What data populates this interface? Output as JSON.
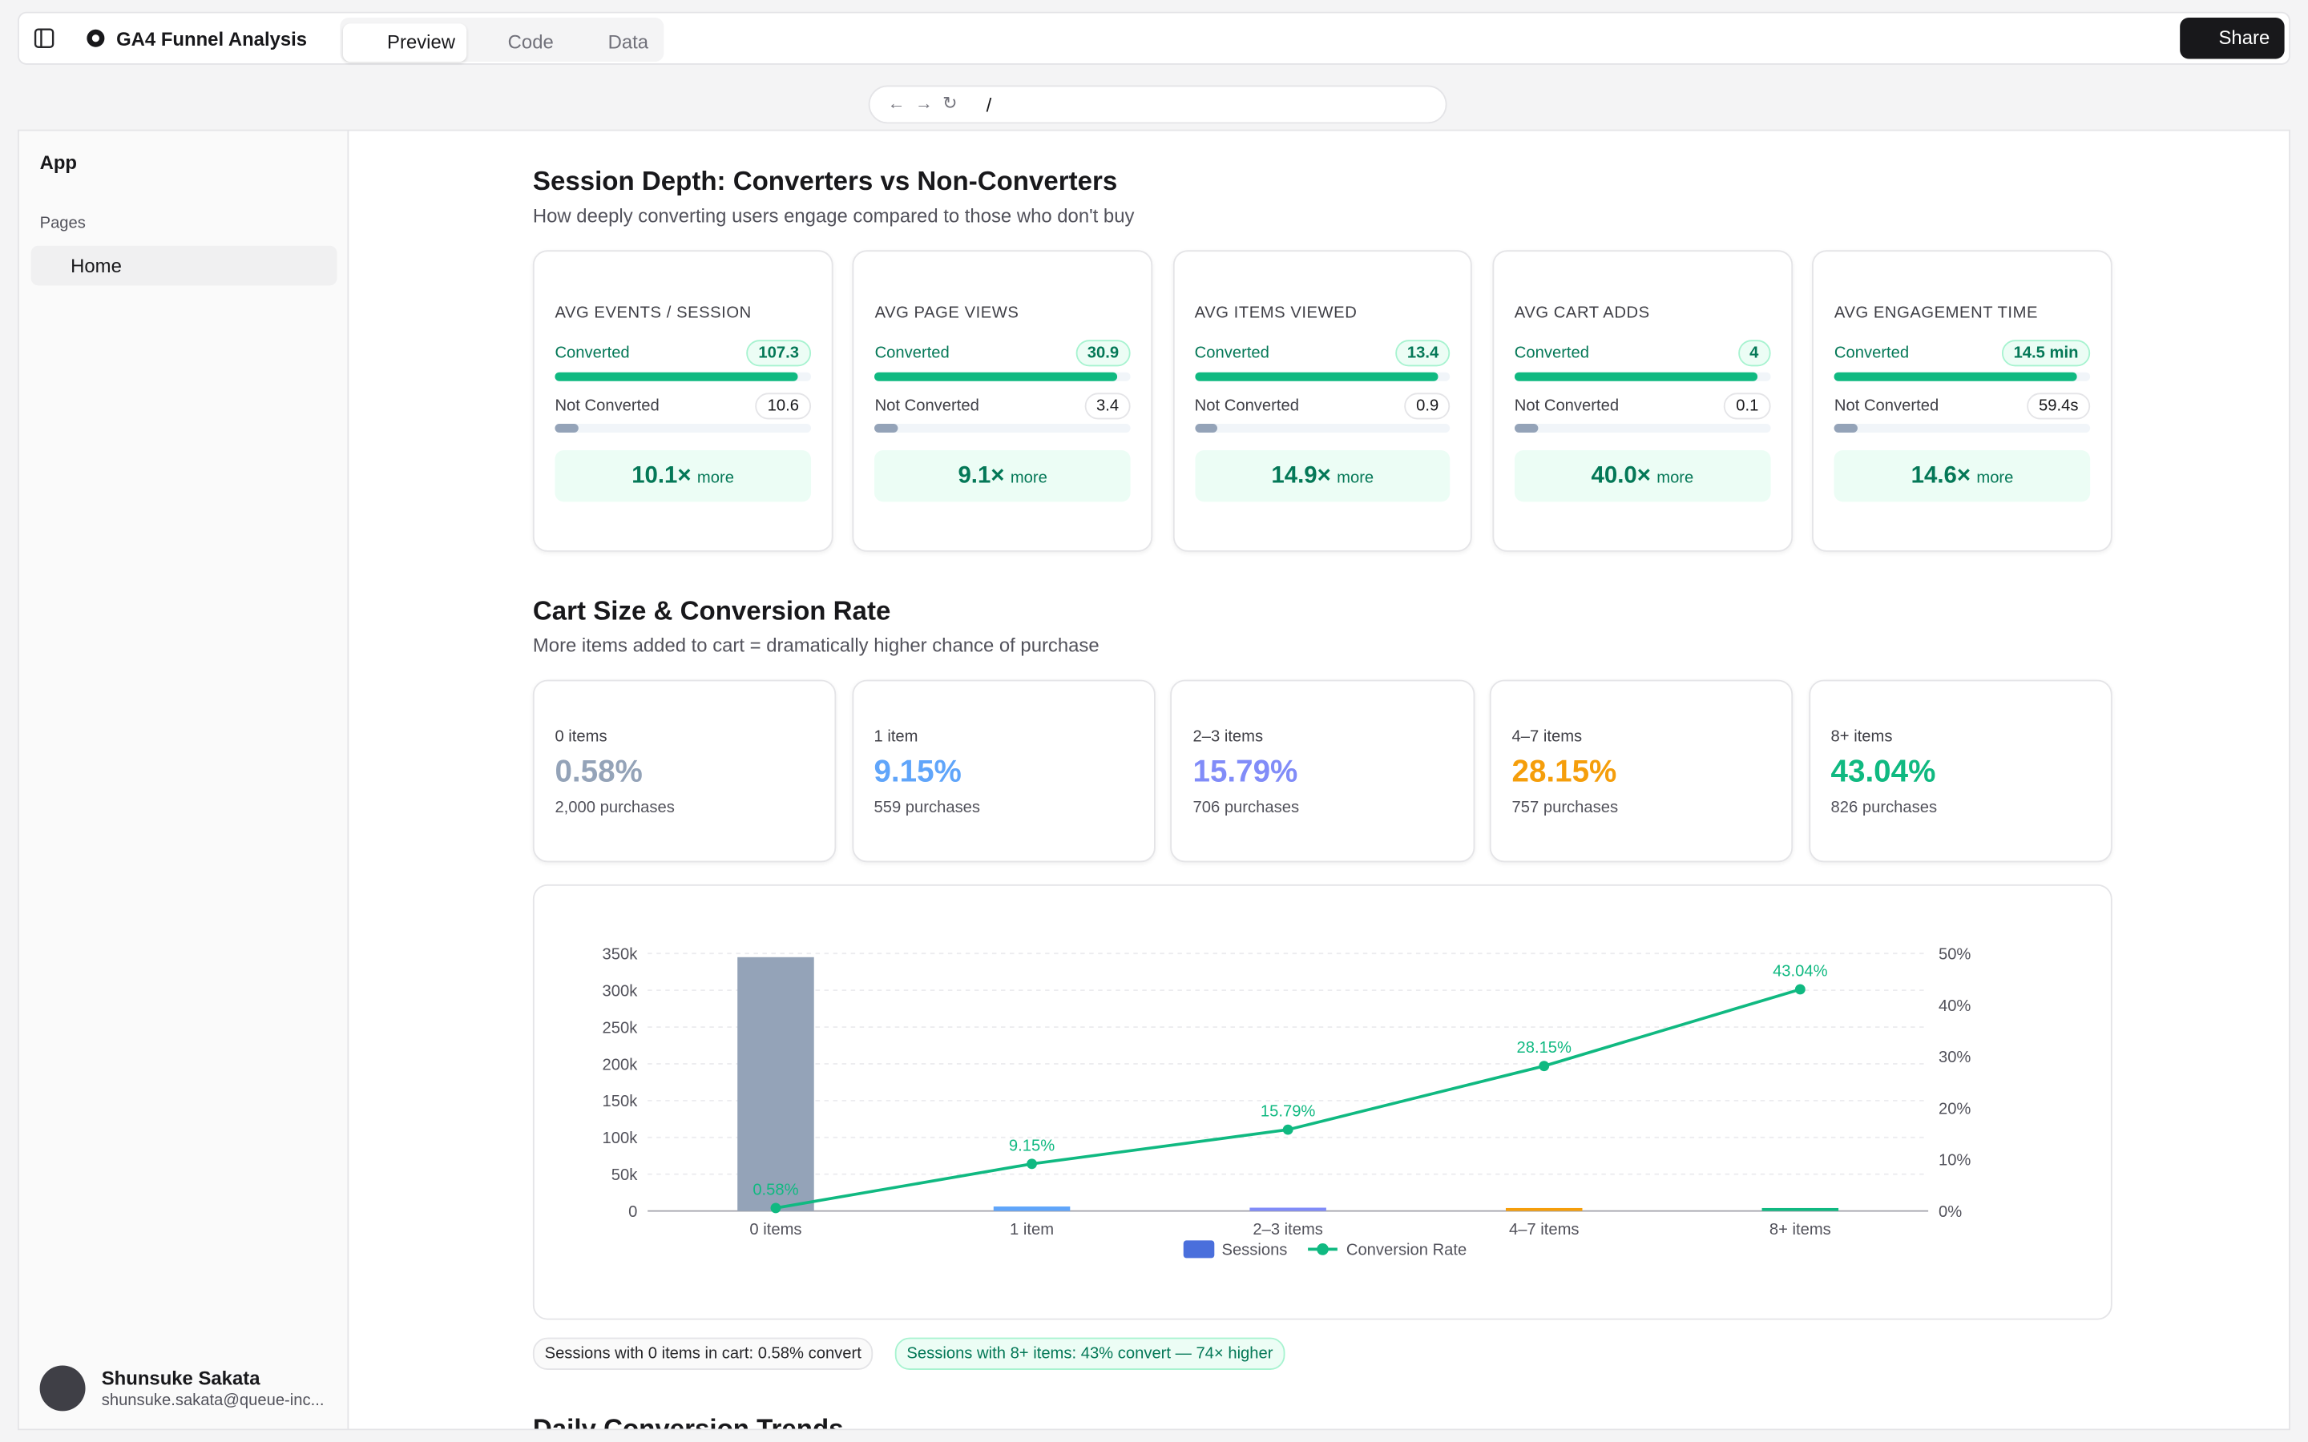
{
  "toolbar": {
    "project": "GA4 Funnel Analysis",
    "tabs": [
      "Preview",
      "Code",
      "Data"
    ],
    "share": "Share",
    "url": "/"
  },
  "sidebar": {
    "app": "App",
    "section": "Pages",
    "items": [
      "Home"
    ],
    "user": {
      "name": "Shunsuke Sakata",
      "email": "shunsuke.sakata@queue-inc..."
    }
  },
  "session_depth": {
    "title": "Session Depth: Converters vs Non-Converters",
    "subtitle": "How deeply converting users engage compared to those who don't buy",
    "cards": [
      {
        "label": "AVG EVENTS / SESSION",
        "converted_label": "Converted",
        "converted": "107.3",
        "not_label": "Not Converted",
        "not_converted": "10.6",
        "multiplier": "10.1×",
        "more": "more"
      },
      {
        "label": "AVG PAGE VIEWS",
        "converted_label": "Converted",
        "converted": "30.9",
        "not_label": "Not Converted",
        "not_converted": "3.4",
        "multiplier": "9.1×",
        "more": "more"
      },
      {
        "label": "AVG ITEMS VIEWED",
        "converted_label": "Converted",
        "converted": "13.4",
        "not_label": "Not Converted",
        "not_converted": "0.9",
        "multiplier": "14.9×",
        "more": "more"
      },
      {
        "label": "AVG CART ADDS",
        "converted_label": "Converted",
        "converted": "4",
        "not_label": "Not Converted",
        "not_converted": "0.1",
        "multiplier": "40.0×",
        "more": "more"
      },
      {
        "label": "AVG ENGAGEMENT TIME",
        "converted_label": "Converted",
        "converted": "14.5 min",
        "not_label": "Not Converted",
        "not_converted": "59.4s",
        "multiplier": "14.6×",
        "more": "more"
      }
    ]
  },
  "cart_size": {
    "title": "Cart Size & Conversion Rate",
    "subtitle": "More items added to cart = dramatically higher chance of purchase",
    "cards": [
      {
        "label": "0 items",
        "rate": "0.58%",
        "purchases": "2,000 purchases",
        "color": "#94a3b8"
      },
      {
        "label": "1 item",
        "rate": "9.15%",
        "purchases": "559 purchases",
        "color": "#60a5fa"
      },
      {
        "label": "2–3 items",
        "rate": "15.79%",
        "purchases": "706 purchases",
        "color": "#818cf8"
      },
      {
        "label": "4–7 items",
        "rate": "28.15%",
        "purchases": "757 purchases",
        "color": "#f59e0b"
      },
      {
        "label": "8+ items",
        "rate": "43.04%",
        "purchases": "826 purchases",
        "color": "#10b981"
      }
    ],
    "notes": [
      "Sessions with 0 items in cart: 0.58% convert",
      "Sessions with 8+ items: 43% convert — 74× higher"
    ]
  },
  "chart_data": {
    "type": "bar_line",
    "categories": [
      "0 items",
      "1 item",
      "2–3 items",
      "4–7 items",
      "8+ items"
    ],
    "series": [
      {
        "name": "Sessions",
        "color": "#4a6fdc",
        "colors": [
          "#94a3b8",
          "#60a5fa",
          "#818cf8",
          "#f59e0b",
          "#10b981"
        ],
        "values": [
          345000,
          6100,
          4500,
          2700,
          1900
        ]
      },
      {
        "name": "Conversion Rate",
        "color": "#10b981",
        "axis": "y2",
        "values": [
          0.58,
          9.15,
          15.79,
          28.15,
          43.04
        ],
        "value_labels": [
          "0.58%",
          "9.15%",
          "15.79%",
          "28.15%",
          "43.04%"
        ]
      }
    ],
    "ylim": [
      0,
      350000
    ],
    "yticks": [
      0,
      {
        "value": 50000,
        "label": "50k"
      },
      {
        "value": 100000,
        "label": "100k"
      },
      {
        "value": 150000,
        "label": "150k"
      },
      {
        "value": 200000,
        "label": "200k"
      },
      {
        "value": 250000,
        "label": "250k"
      },
      {
        "value": 300000,
        "label": "300k"
      },
      {
        "value": 350000,
        "label": "350k"
      }
    ],
    "y2lim": [
      0,
      50
    ],
    "y2ticks": [
      {
        "value": 0,
        "label": "0%"
      },
      {
        "value": 10,
        "label": "10%"
      },
      {
        "value": 20,
        "label": "20%"
      },
      {
        "value": 30,
        "label": "30%"
      },
      {
        "value": 40,
        "label": "40%"
      },
      {
        "value": 50,
        "label": "50%"
      }
    ],
    "grid": true,
    "legend": "bottom"
  },
  "next_section": {
    "title": "Daily Conversion Trends"
  }
}
